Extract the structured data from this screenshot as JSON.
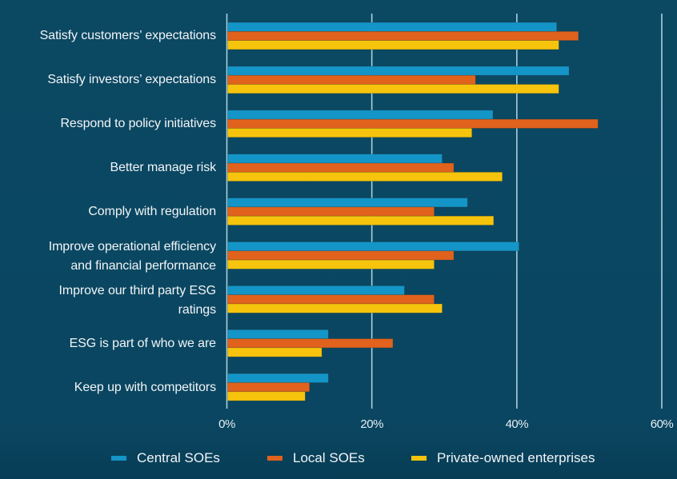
{
  "chart_data": {
    "type": "bar",
    "orientation": "horizontal",
    "title": "",
    "xlabel": "",
    "ylabel": "",
    "xlim": [
      0,
      60
    ],
    "x_ticks": [
      0,
      20,
      40,
      60
    ],
    "x_tick_labels": [
      "0%",
      "20%",
      "40%",
      "60%"
    ],
    "grid": true,
    "legend_position": "bottom",
    "categories": [
      [
        "Satisfy customers’ expectations"
      ],
      [
        "Satisfy investors’ expectations"
      ],
      [
        "Respond to policy initiatives"
      ],
      [
        "Better manage risk"
      ],
      [
        "Comply with regulation"
      ],
      [
        "Improve operational efficiency",
        "and financial performance"
      ],
      [
        "Improve our third party ESG",
        "ratings"
      ],
      [
        "ESG is part of who we are"
      ],
      [
        "Keep up with competitors"
      ]
    ],
    "series": [
      {
        "name": "Central SOEs",
        "color": "#1495c8",
        "values": [
          45.5,
          47.2,
          36.7,
          29.7,
          33.2,
          40.3,
          24.5,
          14.0,
          14.0
        ]
      },
      {
        "name": "Local SOEs",
        "color": "#e0621c",
        "values": [
          48.5,
          34.3,
          51.2,
          31.3,
          28.6,
          31.3,
          28.6,
          22.9,
          11.4
        ]
      },
      {
        "name": "Private-owned enterprises",
        "color": "#f6c40c",
        "values": [
          45.8,
          45.8,
          33.8,
          38.0,
          36.8,
          28.6,
          29.7,
          13.1,
          10.8
        ]
      }
    ],
    "units": "%"
  },
  "colors": {
    "background": "#0b4862",
    "gridline": "#a9cfdf",
    "text": "#f2f5f7"
  }
}
